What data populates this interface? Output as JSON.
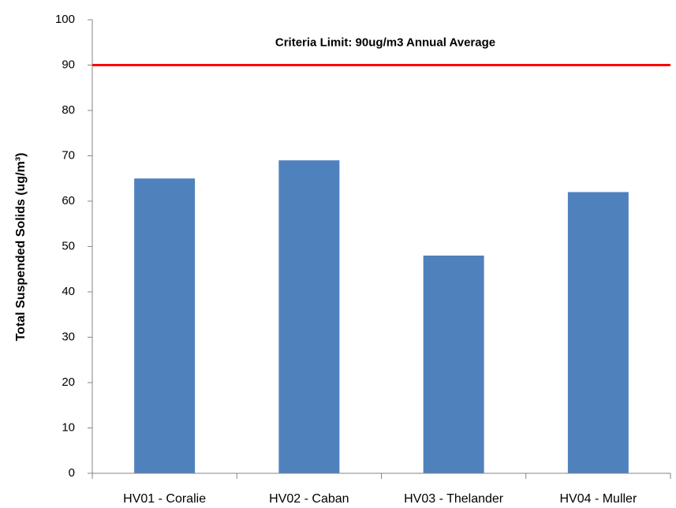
{
  "chart_data": {
    "type": "bar",
    "y_label": "Total Suspended Solids (ug/m³)",
    "categories": [
      "HV01 - Coralie",
      "HV02 - Caban",
      "HV03 - Thelander",
      "HV04 - Muller"
    ],
    "values": [
      65,
      69,
      48,
      62
    ],
    "color": "#4f81bd",
    "ylim": [
      0,
      100
    ],
    "yticks": [
      0,
      10,
      20,
      30,
      40,
      50,
      60,
      70,
      80,
      90,
      100
    ],
    "grid": false,
    "reference_line": {
      "value": 90,
      "label": "Criteria Limit: 90ug/m3 Annual Average",
      "color": "#ff0000"
    }
  }
}
